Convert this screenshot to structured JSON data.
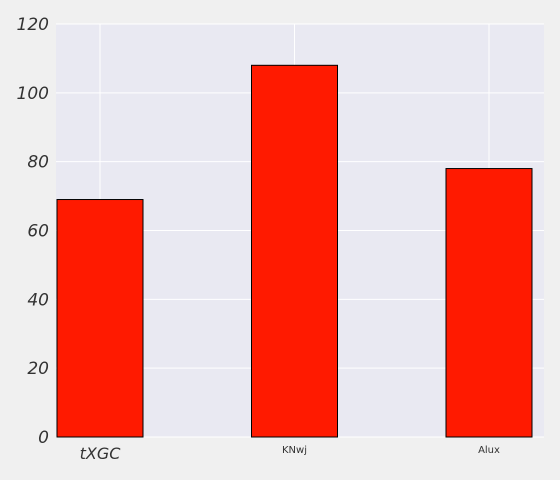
{
  "chart_data": {
    "type": "bar",
    "categories": [
      "tXGC",
      "KNwj",
      "Alux"
    ],
    "values": [
      69,
      108,
      78
    ],
    "ylim": [
      0,
      120
    ],
    "yticks": [
      0,
      20,
      40,
      60,
      80,
      100,
      120
    ],
    "grid": true,
    "title": "",
    "xlabel": "",
    "ylabel": "",
    "colors": {
      "background": "#f0f0f0",
      "plot_background": "#e9e9f2",
      "grid": "#ffffff",
      "bar_fill": "#ff1a00",
      "bar_edge": "#000000",
      "text": "#333333"
    }
  }
}
